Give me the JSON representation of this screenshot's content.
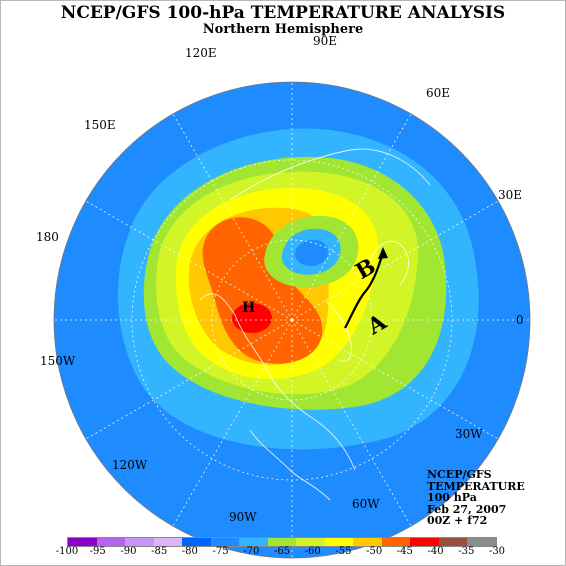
{
  "title": "NCEP/GFS 100-hPa TEMPERATURE ANALYSIS",
  "subtitle": "Northern Hemisphere",
  "longitude_labels": [
    {
      "id": "lon-90e",
      "text": "90E"
    },
    {
      "id": "lon-60e",
      "text": "60E"
    },
    {
      "id": "lon-30e",
      "text": "30E"
    },
    {
      "id": "lon-0",
      "text": "0"
    },
    {
      "id": "lon-30w",
      "text": "30W"
    },
    {
      "id": "lon-60w",
      "text": "60W"
    },
    {
      "id": "lon-90w",
      "text": "90W"
    },
    {
      "id": "lon-120w",
      "text": "120W"
    },
    {
      "id": "lon-150w",
      "text": "150W"
    },
    {
      "id": "lon-180",
      "text": "180"
    },
    {
      "id": "lon-150e",
      "text": "150E"
    },
    {
      "id": "lon-120e",
      "text": "120E"
    }
  ],
  "annotations": {
    "high_marker": "H",
    "label_a": "A",
    "label_b": "B"
  },
  "info": {
    "line1": "NCEP/GFS",
    "line2": "TEMPERATURE",
    "line3": "100 hPa",
    "line4": "Feb 27, 2007",
    "line5": "00Z + f72"
  },
  "colorbar": {
    "labels": [
      "-100",
      "-95",
      "-90",
      "-85",
      "-80",
      "-75",
      "-70",
      "-65",
      "-60",
      "-55",
      "-50",
      "-45",
      "-40",
      "-35",
      "-30"
    ],
    "colors": [
      "#8c00c8",
      "#b464f0",
      "#c896f5",
      "#dcb4fa",
      "#0064ff",
      "#1e8cff",
      "#32b4ff",
      "#a0e632",
      "#d2f528",
      "#ffff00",
      "#ffc800",
      "#ff6400",
      "#ff0000",
      "#96503c",
      "#8c8c8c"
    ]
  },
  "colors": {
    "field_coldest": "#1e8cff",
    "field_cold": "#32b4ff",
    "field_cool": "#a0e632",
    "field_mild": "#d2f528",
    "field_warm": "#ffff00",
    "field_warmer": "#ffc800",
    "field_hot": "#ff6400",
    "field_max": "#ff0000"
  }
}
